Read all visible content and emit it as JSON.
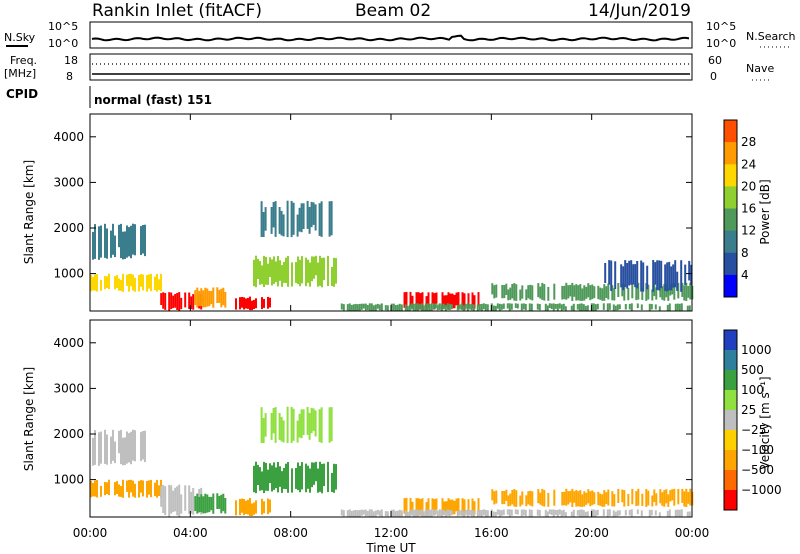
{
  "header": {
    "station": "Rankin Inlet (fitACF)",
    "beam": "Beam 02",
    "date": "14/Jun/2019"
  },
  "summary": {
    "nsky_label": "N.Sky",
    "nsearch_label": "N.Search",
    "freq_label": "Freq.",
    "freq_unit": "[MHz]",
    "nave_label": "Nave",
    "cpid_label": "CPID",
    "cpid_value": "normal (fast) 151",
    "noise_ticks_left": [
      "10^5",
      "10^0"
    ],
    "noise_ticks_right": [
      "10^5",
      "10^0"
    ],
    "freq_ticks": [
      "18",
      "8"
    ],
    "nave_ticks": [
      "60",
      "0"
    ]
  },
  "colors": {
    "power_scale": [
      "#0000ff",
      "#2850a0",
      "#3a7d8c",
      "#4f9a5a",
      "#8fd030",
      "#ffd700",
      "#ff9a00",
      "#ff5000",
      "#ff0000"
    ],
    "velocity_scale": [
      "#ff0000",
      "#ff6a00",
      "#ffa500",
      "#ffd000",
      "#bfbfbf",
      "#90e040",
      "#3aa040",
      "#2f7f9f",
      "#2040c0"
    ]
  },
  "chart_data": [
    {
      "type": "heatmap",
      "panel": "power",
      "ylabel": "Slant Range [km]",
      "yticks": [
        "1000",
        "2000",
        "3000",
        "4000"
      ],
      "ylim": [
        180,
        4500
      ],
      "colorbar_label": "Power [dB]",
      "colorbar_ticks": [
        "4",
        "8",
        "12",
        "16",
        "20",
        "24",
        "28"
      ],
      "colorbar_range": [
        0,
        30
      ],
      "x_hours": [
        0,
        24
      ],
      "bands": [
        {
          "t0": 0.0,
          "t1": 3.0,
          "r0": 600,
          "r1": 1000,
          "value": 18
        },
        {
          "t0": 2.8,
          "t1": 4.4,
          "r0": 180,
          "r1": 600,
          "value": 29
        },
        {
          "t0": 4.0,
          "t1": 5.5,
          "r0": 250,
          "r1": 700,
          "value": 20
        },
        {
          "t0": 5.7,
          "t1": 7.2,
          "r0": 200,
          "r1": 500,
          "value": 27
        },
        {
          "t0": 6.5,
          "t1": 9.8,
          "r0": 700,
          "r1": 1400,
          "value": 14
        },
        {
          "t0": 6.8,
          "t1": 9.6,
          "r0": 1800,
          "r1": 2600,
          "value": 8
        },
        {
          "t0": 0.0,
          "t1": 2.2,
          "r0": 1300,
          "r1": 2100,
          "value": 8
        },
        {
          "t0": 12.5,
          "t1": 15.5,
          "r0": 200,
          "r1": 600,
          "value": 28
        },
        {
          "t0": 10.0,
          "t1": 24.0,
          "r0": 180,
          "r1": 350,
          "value": 12
        },
        {
          "t0": 16.0,
          "t1": 24.0,
          "r0": 400,
          "r1": 800,
          "value": 10
        },
        {
          "t0": 20.5,
          "t1": 24.0,
          "r0": 600,
          "r1": 1300,
          "value": 6
        }
      ]
    },
    {
      "type": "heatmap",
      "panel": "velocity",
      "ylabel": "Slant Range [km]",
      "yticks": [
        "1000",
        "2000",
        "3000",
        "4000"
      ],
      "ylim": [
        180,
        4500
      ],
      "colorbar_label": "Velocity [m s⁻¹]",
      "colorbar_ticks": [
        "1000",
        "500",
        "100",
        "25",
        "−25",
        "−100",
        "−500",
        "−1000"
      ],
      "xlabel": "Time UT",
      "xticks": [
        "00:00",
        "04:00",
        "08:00",
        "12:00",
        "16:00",
        "20:00",
        "00:00"
      ],
      "x_hours": [
        0,
        24
      ],
      "bands": [
        {
          "t0": 0.0,
          "t1": 3.0,
          "r0": 600,
          "r1": 1000,
          "value": -150
        },
        {
          "t0": 2.8,
          "t1": 4.4,
          "r0": 180,
          "r1": 900,
          "value": 0
        },
        {
          "t0": 4.0,
          "t1": 5.5,
          "r0": 250,
          "r1": 700,
          "value": 120
        },
        {
          "t0": 5.7,
          "t1": 7.2,
          "r0": 200,
          "r1": 600,
          "value": -150
        },
        {
          "t0": 6.5,
          "t1": 9.8,
          "r0": 700,
          "r1": 1400,
          "value": 200
        },
        {
          "t0": 6.8,
          "t1": 9.6,
          "r0": 1800,
          "r1": 2600,
          "value": 30
        },
        {
          "t0": 0.0,
          "t1": 2.2,
          "r0": 1300,
          "r1": 2100,
          "value": 10
        },
        {
          "t0": 12.5,
          "t1": 15.5,
          "r0": 200,
          "r1": 600,
          "value": -120
        },
        {
          "t0": 10.0,
          "t1": 24.0,
          "r0": 180,
          "r1": 350,
          "value": 0
        },
        {
          "t0": 16.0,
          "t1": 24.0,
          "r0": 400,
          "r1": 800,
          "value": -200
        }
      ]
    }
  ]
}
